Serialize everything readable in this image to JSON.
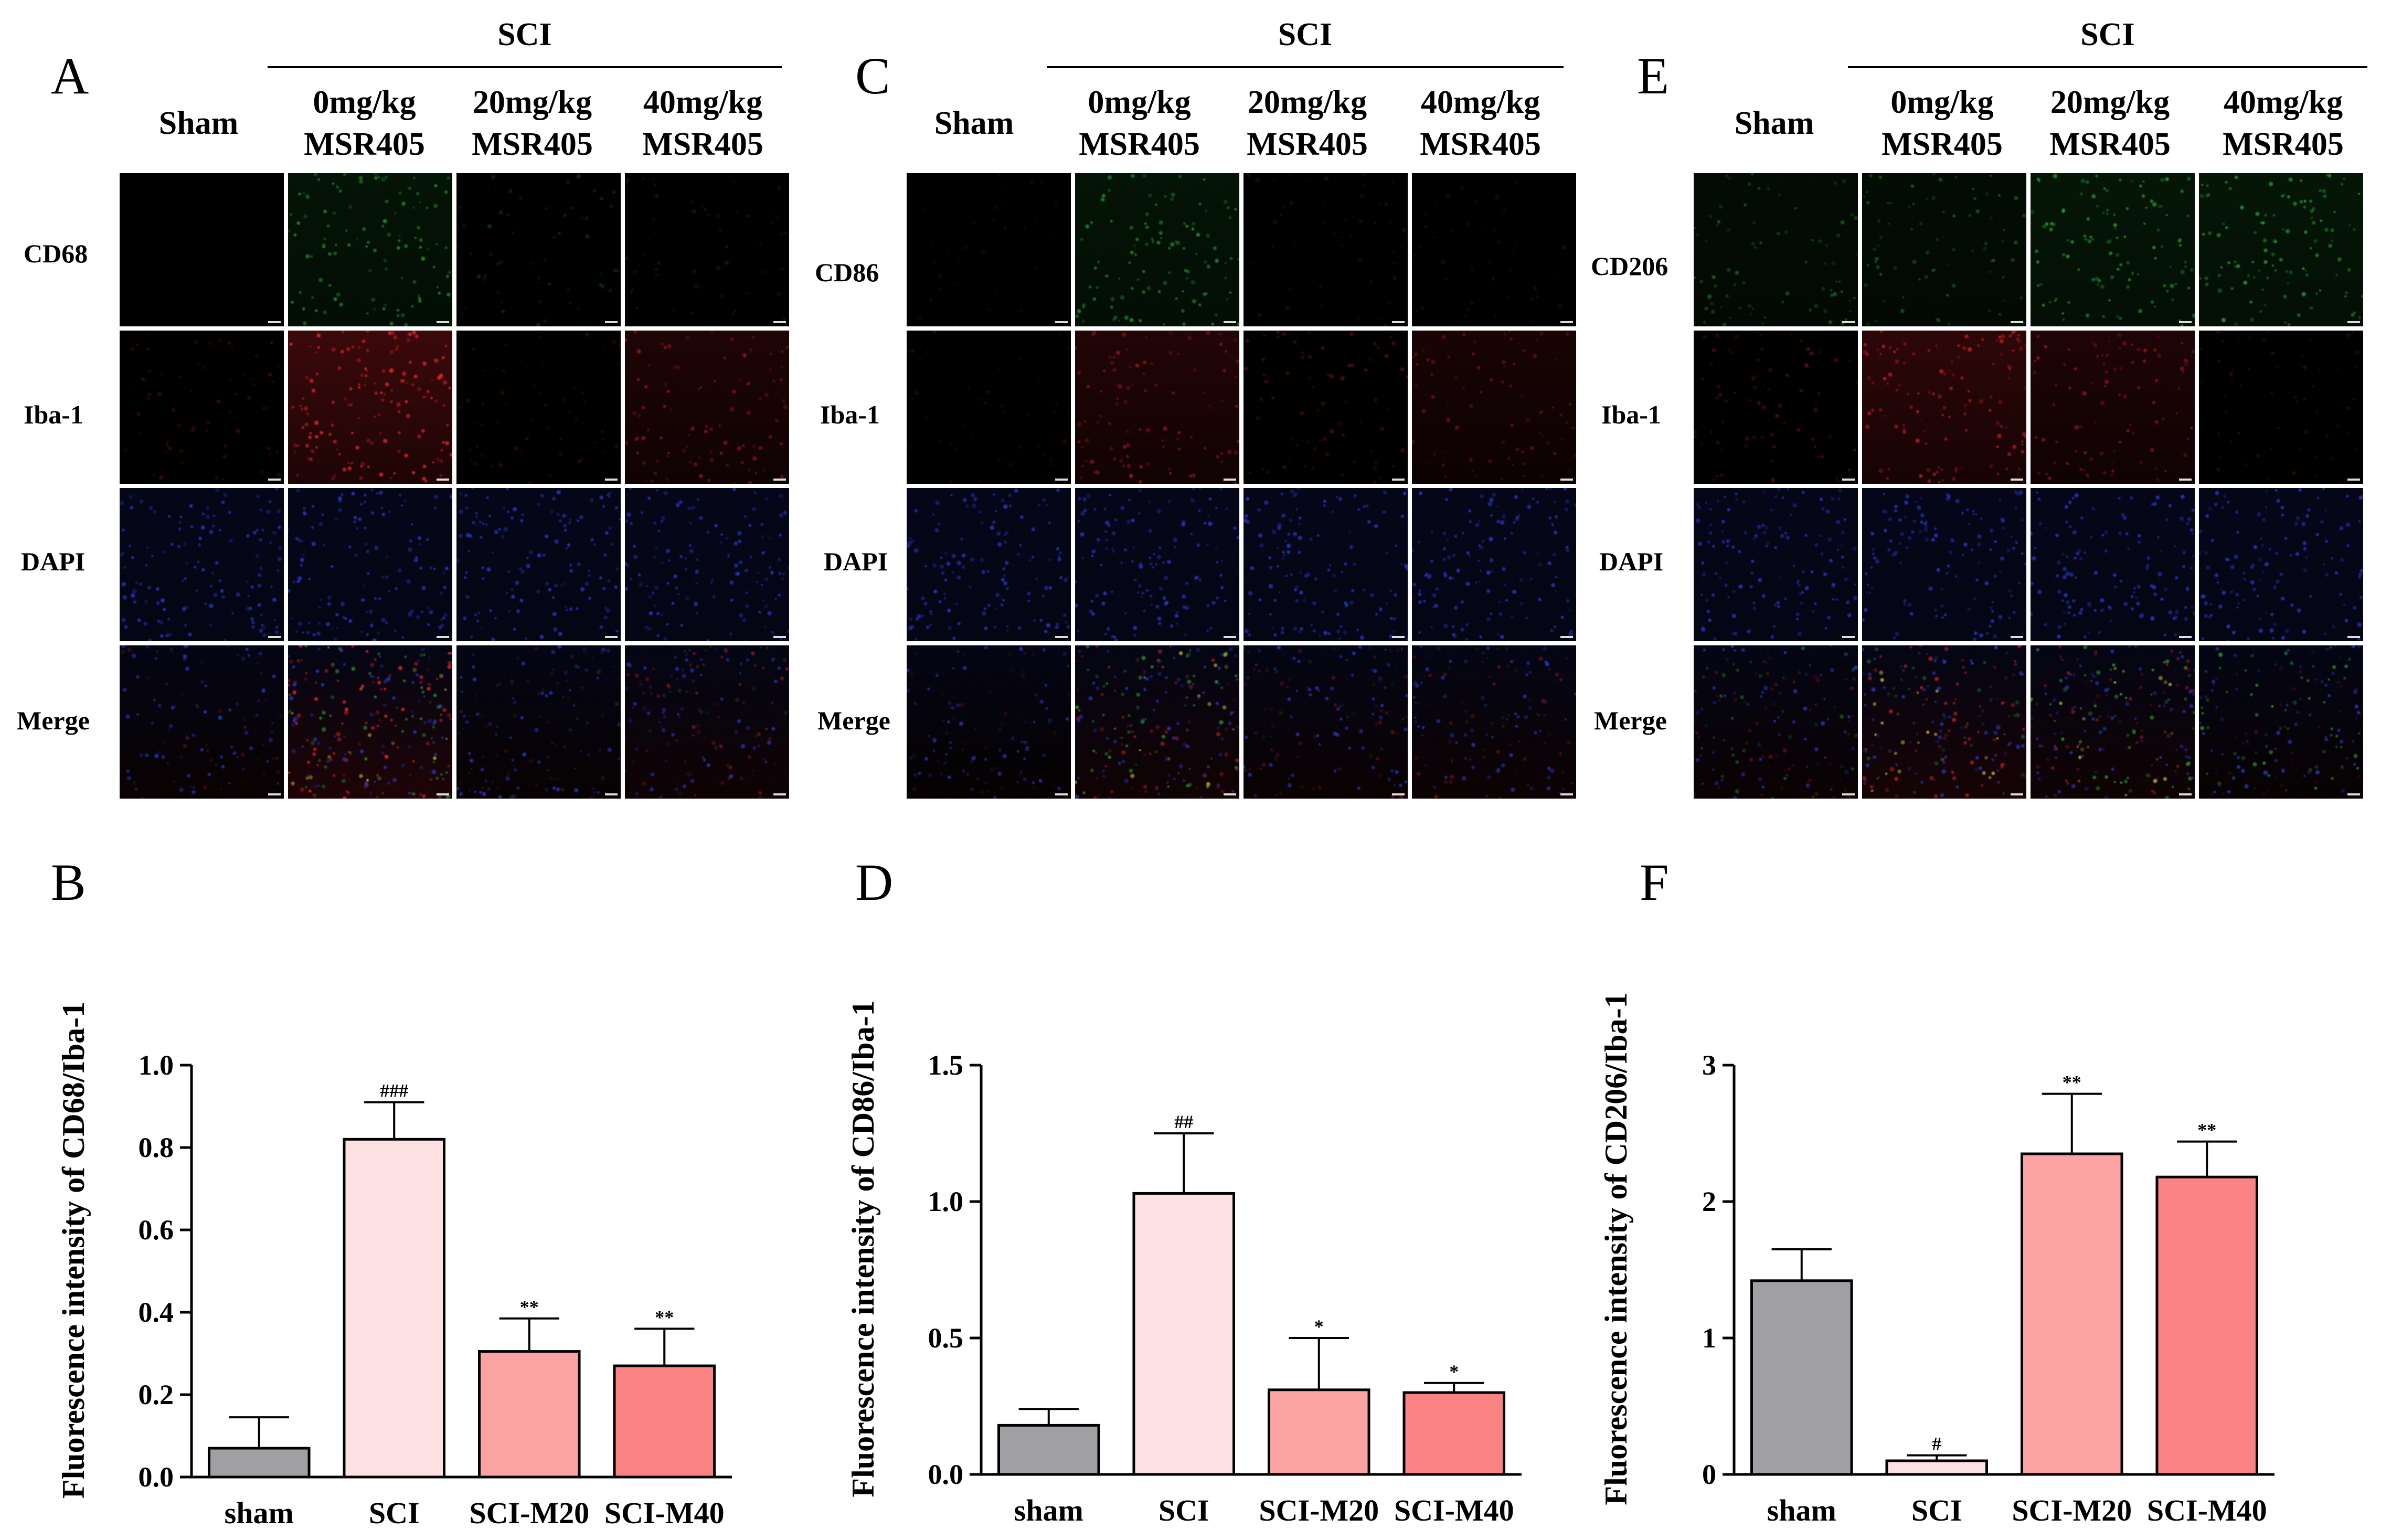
{
  "figure": {
    "panels": [
      {
        "id": "A",
        "marker": "CD68",
        "group_header": "SCI",
        "columns": [
          {
            "line1": "Sham",
            "line2": ""
          },
          {
            "line1": "0mg/kg",
            "line2": "MSR405"
          },
          {
            "line1": "20mg/kg",
            "line2": "MSR405"
          },
          {
            "line1": "40mg/kg",
            "line2": "MSR405"
          }
        ],
        "rows": [
          "CD68",
          "Iba-1",
          "DAPI",
          "Merge"
        ]
      },
      {
        "id": "C",
        "marker": "CD86",
        "group_header": "SCI",
        "columns": [
          {
            "line1": "Sham",
            "line2": ""
          },
          {
            "line1": "0mg/kg",
            "line2": "MSR405"
          },
          {
            "line1": "20mg/kg",
            "line2": "MSR405"
          },
          {
            "line1": "40mg/kg",
            "line2": "MSR405"
          }
        ],
        "rows": [
          "CD86",
          "Iba-1",
          "DAPI",
          "Merge"
        ]
      },
      {
        "id": "E",
        "marker": "CD206",
        "group_header": "SCI",
        "columns": [
          {
            "line1": "Sham",
            "line2": ""
          },
          {
            "line1": "0mg/kg",
            "line2": "MSR405"
          },
          {
            "line1": "20mg/kg",
            "line2": "MSR405"
          },
          {
            "line1": "40mg/kg",
            "line2": "MSR405"
          }
        ],
        "rows": [
          "CD206",
          "Iba-1",
          "DAPI",
          "Merge"
        ]
      }
    ],
    "tile_colors": {
      "green": "#2ecc40",
      "red": "#e8232b",
      "blue": "#2a36c8",
      "yellow": "#e0d040"
    },
    "tile_intensity_note": "Relative signal per column (0-1) used to render micrograph tiles",
    "tile_intensity": {
      "A": {
        "marker": [
          0.0,
          0.55,
          0.2,
          0.15
        ],
        "iba": [
          0.25,
          0.85,
          0.2,
          0.45
        ]
      },
      "C": {
        "marker": [
          0.08,
          0.55,
          0.12,
          0.1
        ],
        "iba": [
          0.15,
          0.5,
          0.3,
          0.35
        ]
      },
      "E": {
        "marker": [
          0.35,
          0.35,
          0.6,
          0.6
        ],
        "iba": [
          0.3,
          0.65,
          0.45,
          0.2
        ]
      }
    }
  },
  "chart_data": [
    {
      "id": "B",
      "type": "bar",
      "categories": [
        "sham",
        "SCI",
        "SCI-M20",
        "SCI-M40"
      ],
      "values": [
        0.07,
        0.82,
        0.305,
        0.27
      ],
      "errors": [
        0.075,
        0.09,
        0.08,
        0.09
      ],
      "annotations": [
        "",
        "###",
        "**",
        "**"
      ],
      "colors": [
        "#a0a0a4",
        "#fde0e2",
        "#fba3a3",
        "#fb8383"
      ],
      "ylabel": "Fluorescence intensity of  CD68/Iba-1",
      "xlabel": "",
      "ylim": [
        0,
        1.0
      ],
      "yticks": [
        0.0,
        0.2,
        0.4,
        0.6,
        0.8,
        1.0
      ],
      "ytick_labels": [
        "0.0",
        "0.2",
        "0.4",
        "0.6",
        "0.8",
        "1.0"
      ]
    },
    {
      "id": "D",
      "type": "bar",
      "categories": [
        "sham",
        "SCI",
        "SCI-M20",
        "SCI-M40"
      ],
      "values": [
        0.18,
        1.03,
        0.31,
        0.3
      ],
      "errors": [
        0.06,
        0.22,
        0.19,
        0.035
      ],
      "annotations": [
        "",
        "##",
        "*",
        "*"
      ],
      "colors": [
        "#a0a0a4",
        "#fde0e2",
        "#fba3a3",
        "#fb8383"
      ],
      "ylabel": "Fluorescence intensity of  CD86/Iba-1",
      "xlabel": "",
      "ylim": [
        0,
        1.5
      ],
      "yticks": [
        0.0,
        0.5,
        1.0,
        1.5
      ],
      "ytick_labels": [
        "0.0",
        "0.5",
        "1.0",
        "1.5"
      ]
    },
    {
      "id": "F",
      "type": "bar",
      "categories": [
        "sham",
        "SCI",
        "SCI-M20",
        "SCI-M40"
      ],
      "values": [
        1.42,
        0.1,
        2.35,
        2.18
      ],
      "errors": [
        0.23,
        0.04,
        0.44,
        0.26
      ],
      "annotations": [
        "",
        "#",
        "**",
        "**"
      ],
      "colors": [
        "#a0a0a4",
        "#fde0e2",
        "#fba3a3",
        "#fb8383"
      ],
      "ylabel": "Fluorescence intensity of  CD206/Iba-1",
      "xlabel": "",
      "ylim": [
        0,
        3
      ],
      "yticks": [
        0,
        1,
        2,
        3
      ],
      "ytick_labels": [
        "0",
        "1",
        "2",
        "3"
      ]
    }
  ]
}
